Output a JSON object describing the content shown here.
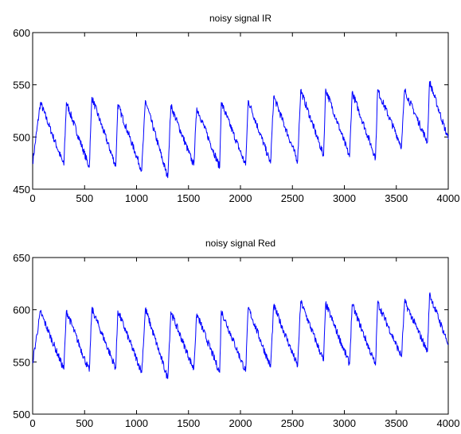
{
  "chart_data": [
    {
      "type": "line",
      "title": "noisy signal IR",
      "xlim": [
        0,
        4000
      ],
      "ylim": [
        450,
        600
      ],
      "xticks": [
        0,
        500,
        1000,
        1500,
        2000,
        2500,
        3000,
        3500,
        4000
      ],
      "yticks": [
        450,
        500,
        550,
        600
      ],
      "xtick_labels": [
        "0",
        "500",
        "1000",
        "1500",
        "2000",
        "2500",
        "3000",
        "3500",
        "4000"
      ],
      "ytick_labels": [
        "450",
        "500",
        "550",
        "600"
      ],
      "grid": false,
      "series": [
        {
          "color": "#0000ff",
          "x": [
            0,
            75,
            300,
            325,
            545,
            570,
            800,
            820,
            1050,
            1085,
            1300,
            1330,
            1550,
            1580,
            1800,
            1815,
            2050,
            2075,
            2290,
            2320,
            2550,
            2580,
            2800,
            2820,
            3050,
            3075,
            3300,
            3320,
            3550,
            3580,
            3800,
            3820,
            4000
          ],
          "y": [
            475,
            533,
            473,
            533,
            471,
            538,
            472,
            531,
            468,
            535,
            461,
            530,
            473,
            528,
            471,
            533,
            473,
            535,
            475,
            539,
            477,
            545,
            482,
            546,
            481,
            543,
            480,
            545,
            491,
            545,
            495,
            553,
            498
          ]
        }
      ]
    },
    {
      "type": "line",
      "title": "noisy signal Red",
      "xlim": [
        0,
        4000
      ],
      "ylim": [
        500,
        650
      ],
      "xticks": [
        0,
        500,
        1000,
        1500,
        2000,
        2500,
        3000,
        3500,
        4000
      ],
      "yticks": [
        500,
        550,
        600,
        650
      ],
      "xtick_labels": [
        "0",
        "500",
        "1000",
        "1500",
        "2000",
        "2500",
        "3000",
        "3500",
        "4000"
      ],
      "ytick_labels": [
        "500",
        "550",
        "600",
        "650"
      ],
      "grid": false,
      "series": [
        {
          "color": "#0000ff",
          "x": [
            0,
            75,
            300,
            325,
            545,
            570,
            800,
            820,
            1050,
            1085,
            1300,
            1330,
            1550,
            1580,
            1800,
            1815,
            2050,
            2075,
            2290,
            2320,
            2550,
            2580,
            2800,
            2820,
            3050,
            3075,
            3300,
            3320,
            3550,
            3580,
            3800,
            3820,
            4000
          ],
          "y": [
            550,
            598,
            543,
            599,
            541,
            601,
            544,
            599,
            540,
            601,
            534,
            598,
            543,
            596,
            540,
            599,
            541,
            602,
            545,
            604,
            546,
            608,
            551,
            606,
            548,
            605,
            547,
            607,
            555,
            608,
            560,
            615,
            567
          ]
        }
      ]
    }
  ]
}
